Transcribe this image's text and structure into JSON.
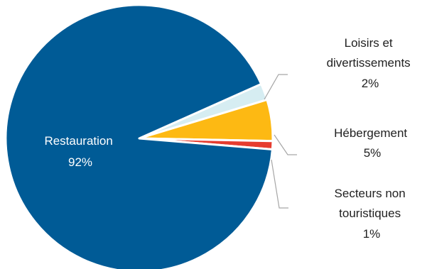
{
  "chart_data": {
    "type": "pie",
    "title": "",
    "legend": "none",
    "slices": [
      {
        "label": "Restauration",
        "value": 92,
        "display": "92%",
        "color": "#005b96"
      },
      {
        "label": "Loisirs et divertissements",
        "value": 2,
        "display": "2%",
        "color": "#d6edf2"
      },
      {
        "label": "Hébergement",
        "value": 5,
        "display": "5%",
        "color": "#fdb913"
      },
      {
        "label": "Secteurs non touristiques",
        "value": 1,
        "display": "1%",
        "color": "#e63c2f"
      }
    ],
    "label_lines": {
      "restauration": [
        "Restauration",
        "92%"
      ],
      "loisirs": [
        "Loisirs et",
        "divertissements",
        "2%"
      ],
      "hebergement": [
        "Hébergement",
        "5%"
      ],
      "secteurs": [
        "Secteurs non",
        "touristiques",
        "1%"
      ]
    }
  }
}
